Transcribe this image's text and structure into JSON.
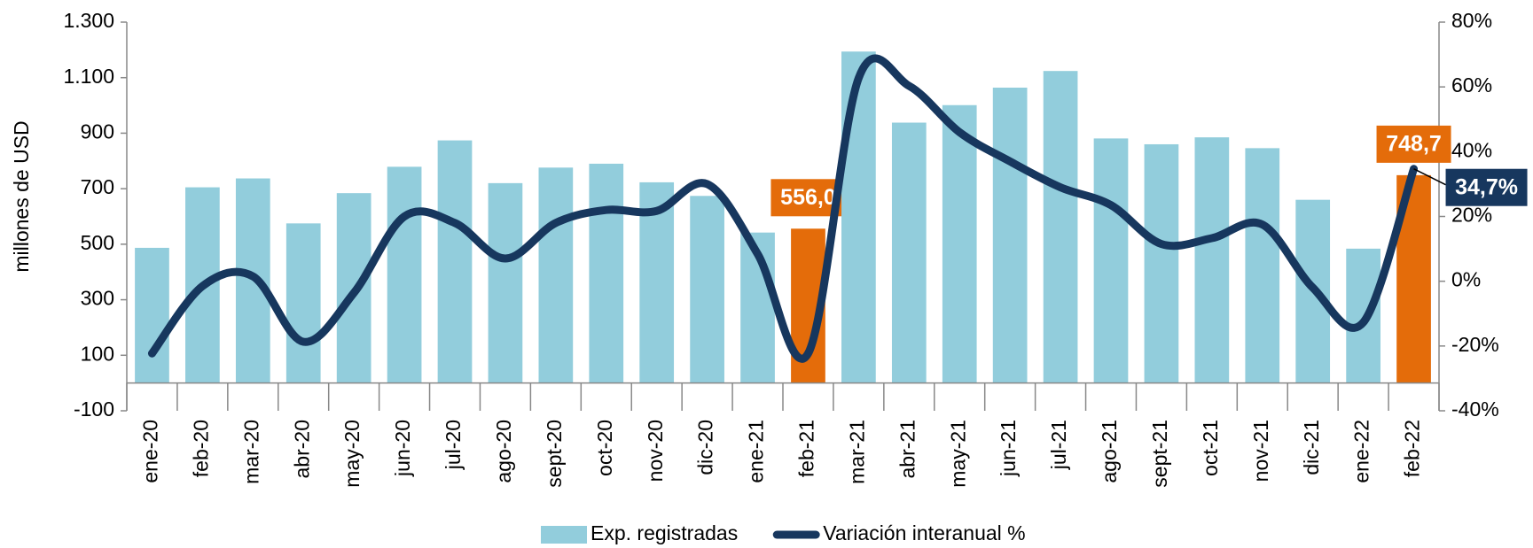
{
  "chart_data": {
    "type": "bar_line",
    "y_axis_label": "millones de USD",
    "categories": [
      "ene-20",
      "feb-20",
      "mar-20",
      "abr-20",
      "may-20",
      "jun-20",
      "jul-20",
      "ago-20",
      "sept-20",
      "oct-20",
      "nov-20",
      "dic-20",
      "ene-21",
      "feb-21",
      "mar-21",
      "abr-21",
      "may-21",
      "jun-21",
      "jul-21",
      "ago-21",
      "sept-21",
      "oct-21",
      "nov-21",
      "dic-21",
      "ene-22",
      "feb-22"
    ],
    "series": [
      {
        "name": "Exp. registradas",
        "type": "bar",
        "color": "#92cddc",
        "colors": [
          "#92cddc",
          "#92cddc",
          "#92cddc",
          "#92cddc",
          "#92cddc",
          "#92cddc",
          "#92cddc",
          "#92cddc",
          "#92cddc",
          "#92cddc",
          "#92cddc",
          "#92cddc",
          "#92cddc",
          "#e46c0a",
          "#92cddc",
          "#92cddc",
          "#92cddc",
          "#92cddc",
          "#92cddc",
          "#92cddc",
          "#92cddc",
          "#92cddc",
          "#92cddc",
          "#92cddc",
          "#92cddc",
          "#e46c0a"
        ],
        "values": [
          487,
          705,
          737,
          575,
          684,
          779,
          874,
          720,
          776,
          790,
          723,
          674,
          542,
          556.0,
          1194,
          938,
          1001,
          1064,
          1124,
          881,
          860,
          885,
          846,
          660,
          484,
          748.7
        ],
        "value_labels": [
          null,
          null,
          null,
          null,
          null,
          null,
          null,
          null,
          null,
          null,
          null,
          null,
          null,
          "556,0",
          null,
          null,
          null,
          null,
          null,
          null,
          null,
          null,
          null,
          null,
          null,
          "748,7"
        ]
      },
      {
        "name": "Variación interanual %",
        "type": "line",
        "axis": "y2",
        "color": "#17375e",
        "values": [
          -22.3,
          -1.5,
          1.5,
          -18.7,
          -3.6,
          20,
          18,
          7,
          18,
          22,
          21.7,
          30,
          8.4,
          -22.3,
          62.7,
          60.3,
          46,
          37,
          29,
          23.5,
          11.5,
          13.3,
          17.5,
          -2,
          -12.7,
          34.7
        ],
        "value_labels": [
          null,
          null,
          null,
          null,
          null,
          null,
          null,
          null,
          null,
          null,
          null,
          null,
          null,
          null,
          null,
          null,
          null,
          null,
          null,
          null,
          null,
          null,
          null,
          null,
          null,
          "34,7%"
        ]
      }
    ],
    "ylim": [
      -100,
      1300
    ],
    "yticks": [
      -100,
      100,
      300,
      500,
      700,
      900,
      {
        "value": 1100,
        "label": "1.100"
      },
      {
        "value": 1300,
        "label": "1.300"
      }
    ],
    "y2lim": [
      -40,
      80
    ],
    "y2ticks": [
      {
        "value": -40,
        "label": "-40%"
      },
      {
        "value": -20,
        "label": "-20%"
      },
      {
        "value": 0,
        "label": "0%"
      },
      {
        "value": 20,
        "label": "20%"
      },
      {
        "value": 40,
        "label": "40%"
      },
      {
        "value": 60,
        "label": "60%"
      },
      {
        "value": 80,
        "label": "80%"
      }
    ],
    "legend": "bottom",
    "grid": false
  }
}
